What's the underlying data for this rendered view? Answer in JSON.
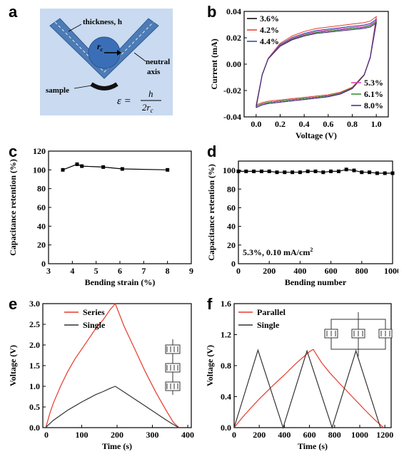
{
  "panels": {
    "a": "a",
    "b": "b",
    "c": "c",
    "d": "d",
    "e": "e",
    "f": "f"
  },
  "diagram": {
    "thickness_label": "thickness, h",
    "radius_label": "r",
    "radius_sub": "c",
    "neutral_label_1": "neutral",
    "neutral_label_2": "axis",
    "sample_label": "sample",
    "eq_lhs": "ε =",
    "eq_num": "h",
    "eq_den": "2r",
    "eq_den_sub": "c",
    "colors": {
      "bg": "#c9daf1",
      "beam": "#4d7bb5",
      "circle": "#3a6fb7",
      "sample": "#111111"
    }
  },
  "chart_data": [
    {
      "id": "b",
      "type": "line",
      "xlabel": "Voltage (V)",
      "ylabel": "Current (mA)",
      "xlim": [
        -0.1,
        1.1
      ],
      "ylim": [
        -0.04,
        0.04
      ],
      "xticks": [
        "0.0",
        "0.2",
        "0.4",
        "0.6",
        "0.8",
        "1.0"
      ],
      "xtick_values": [
        0,
        0.2,
        0.4,
        0.6,
        0.8,
        1.0
      ],
      "yticks": [
        "-0.04",
        "-0.02",
        "0.00",
        "0.02",
        "0.04"
      ],
      "ytick_values": [
        -0.04,
        -0.02,
        0,
        0.02,
        0.04
      ],
      "grid": false,
      "legend_top_left": [
        "3.6%",
        "4.2%",
        "4.4%"
      ],
      "legend_bottom_right": [
        "5.3%",
        "6.1%",
        "8.0%"
      ],
      "series": [
        {
          "name": "3.6%",
          "color": "#000000",
          "upper_end": 0.032,
          "lower_start": -0.032
        },
        {
          "name": "4.2%",
          "color": "#e8392b",
          "upper_end": 0.036,
          "lower_start": -0.031
        },
        {
          "name": "4.4%",
          "color": "#2f3fae",
          "upper_end": 0.034,
          "lower_start": -0.033
        },
        {
          "name": "5.3%",
          "color": "#d63fb2",
          "upper_end": 0.033,
          "lower_start": -0.032
        },
        {
          "name": "6.1%",
          "color": "#2a8a2a",
          "upper_end": 0.032,
          "lower_start": -0.032
        },
        {
          "name": "8.0%",
          "color": "#4a1f8a",
          "upper_end": 0.031,
          "lower_start": -0.033
        }
      ],
      "cv_x": [
        0,
        0.05,
        0.1,
        0.2,
        0.3,
        0.4,
        0.5,
        0.6,
        0.7,
        0.8,
        0.9,
        0.95,
        1.0
      ],
      "cv_upper_shape": [
        -0.032,
        -0.008,
        0.004,
        0.014,
        0.019,
        0.022,
        0.024,
        0.025,
        0.026,
        0.027,
        0.028,
        0.029,
        0.032
      ],
      "cv_lower_shape": [
        -0.032,
        -0.03,
        -0.029,
        -0.028,
        -0.027,
        -0.026,
        -0.025,
        -0.024,
        -0.022,
        -0.018,
        -0.008,
        0.005,
        0.032
      ]
    },
    {
      "id": "c",
      "type": "line",
      "xlabel": "Bending strain (%)",
      "ylabel": "Capacitance retention (%)",
      "xlim": [
        3,
        9
      ],
      "ylim": [
        0,
        120
      ],
      "xticks": [
        "3",
        "4",
        "5",
        "6",
        "7",
        "8",
        "9"
      ],
      "xtick_values": [
        3,
        4,
        5,
        6,
        7,
        8,
        9
      ],
      "yticks": [
        "0",
        "20",
        "40",
        "60",
        "80",
        "100",
        "120"
      ],
      "ytick_values": [
        0,
        20,
        40,
        60,
        80,
        100,
        120
      ],
      "grid": false,
      "series": [
        {
          "name": "",
          "color": "#000000",
          "x": [
            3.6,
            4.2,
            4.4,
            5.3,
            6.1,
            8.0
          ],
          "y": [
            100,
            106,
            104,
            103,
            101,
            100
          ]
        }
      ]
    },
    {
      "id": "d",
      "type": "line",
      "xlabel": "Bending number",
      "ylabel": "Capacitance retention (%)",
      "xlim": [
        0,
        1000
      ],
      "ylim": [
        0,
        110
      ],
      "xticks": [
        "0",
        "200",
        "400",
        "600",
        "800",
        "1000"
      ],
      "xtick_values": [
        0,
        200,
        400,
        600,
        800,
        1000
      ],
      "yticks": [
        "0",
        "20",
        "40",
        "60",
        "80",
        "100"
      ],
      "ytick_values": [
        0,
        20,
        40,
        60,
        80,
        100
      ],
      "grid": false,
      "annotation": "5.3%, 0.10 mA/cm",
      "annotation_sup": "2",
      "series": [
        {
          "name": "",
          "color": "#000000",
          "x": [
            0,
            50,
            100,
            150,
            200,
            250,
            300,
            350,
            400,
            450,
            500,
            550,
            600,
            650,
            700,
            750,
            800,
            850,
            900,
            950,
            1000
          ],
          "y": [
            99,
            99,
            99,
            99,
            99,
            98,
            98,
            98,
            98,
            99,
            99,
            98,
            99,
            99,
            101,
            100,
            98,
            98,
            97,
            97,
            97
          ]
        }
      ]
    },
    {
      "id": "e",
      "type": "line",
      "xlabel": "Time (s)",
      "ylabel": "Voltage (V)",
      "xlim": [
        -10,
        410
      ],
      "ylim": [
        0,
        3.0
      ],
      "xticks": [
        "0",
        "100",
        "200",
        "300",
        "400"
      ],
      "xtick_values": [
        0,
        100,
        200,
        300,
        400
      ],
      "yticks": [
        "0.0",
        "0.5",
        "1.0",
        "1.5",
        "2.0",
        "2.5",
        "3.0"
      ],
      "ytick_values": [
        0,
        0.5,
        1.0,
        1.5,
        2.0,
        2.5,
        3.0
      ],
      "grid": false,
      "series": [
        {
          "name": "Series",
          "color": "#e8392b",
          "x": [
            0,
            10,
            20,
            40,
            60,
            80,
            100,
            120,
            140,
            160,
            180,
            195,
            220,
            250,
            280,
            310,
            340,
            360,
            375
          ],
          "y": [
            0.05,
            0.35,
            0.6,
            1.0,
            1.35,
            1.65,
            1.9,
            2.15,
            2.4,
            2.6,
            2.85,
            3.0,
            2.45,
            1.9,
            1.35,
            0.85,
            0.4,
            0.12,
            0.0
          ]
        },
        {
          "name": "Single",
          "color": "#333333",
          "x": [
            0,
            10,
            20,
            40,
            60,
            80,
            100,
            120,
            140,
            160,
            180,
            195,
            220,
            250,
            280,
            310,
            340,
            360,
            375
          ],
          "y": [
            0.02,
            0.1,
            0.18,
            0.3,
            0.42,
            0.52,
            0.62,
            0.71,
            0.8,
            0.87,
            0.95,
            1.0,
            0.86,
            0.69,
            0.52,
            0.35,
            0.18,
            0.07,
            0.0
          ]
        }
      ]
    },
    {
      "id": "f",
      "type": "line",
      "xlabel": "Time (s)",
      "ylabel": "Voltage (V)",
      "xlim": [
        0,
        1250
      ],
      "ylim": [
        0,
        1.6
      ],
      "xticks": [
        "0",
        "200",
        "400",
        "600",
        "800",
        "1000",
        "1200"
      ],
      "xtick_values": [
        0,
        200,
        400,
        600,
        800,
        1000,
        1200
      ],
      "yticks": [
        "0.0",
        "0.4",
        "0.8",
        "1.2",
        "1.6"
      ],
      "ytick_values": [
        0,
        0.4,
        0.8,
        1.2,
        1.6
      ],
      "grid": false,
      "series": [
        {
          "name": "Parallel",
          "color": "#e8392b",
          "x": [
            0,
            60,
            120,
            200,
            300,
            400,
            500,
            600,
            630,
            660,
            700,
            760,
            840,
            940,
            1040,
            1120,
            1190
          ],
          "y": [
            0.0,
            0.12,
            0.23,
            0.37,
            0.53,
            0.68,
            0.84,
            0.98,
            1.01,
            0.93,
            0.83,
            0.71,
            0.57,
            0.4,
            0.23,
            0.1,
            0.0
          ]
        },
        {
          "name": "Single",
          "color": "#333333",
          "x": [
            0,
            190,
            390,
            580,
            780,
            970,
            1165
          ],
          "y": [
            0.0,
            1.0,
            0.0,
            0.99,
            0.0,
            0.99,
            0.0
          ]
        }
      ]
    }
  ]
}
